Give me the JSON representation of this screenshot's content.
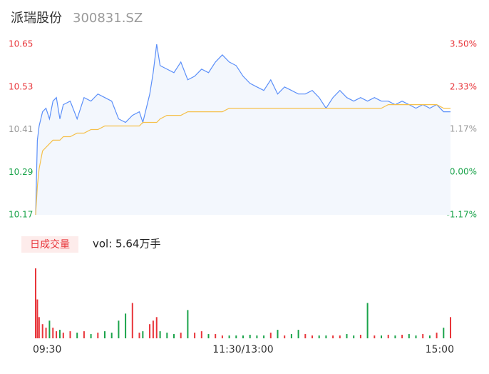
{
  "header": {
    "name": "派瑞股份",
    "code": "300831.SZ"
  },
  "chart_data": {
    "type": "line",
    "x": [
      0,
      1,
      2,
      4,
      6,
      8,
      10,
      12,
      14,
      16,
      20,
      24,
      28,
      32,
      36,
      40,
      44,
      48,
      52,
      56,
      60,
      62,
      66,
      68,
      70,
      72,
      76,
      80,
      84,
      88,
      92,
      96,
      100,
      104,
      108,
      112,
      116,
      120,
      124,
      128,
      132,
      136,
      140,
      144,
      148,
      152,
      156,
      160,
      164,
      168,
      172,
      176,
      180,
      184,
      188,
      192,
      196,
      200,
      204,
      208,
      212,
      216,
      220,
      224,
      228,
      232,
      236,
      240
    ],
    "xlim": [
      0,
      240
    ],
    "xticks": [
      {
        "value": 0,
        "label": "09:30"
      },
      {
        "value": 120,
        "label": "11:30/13:00"
      },
      {
        "value": 240,
        "label": "15:00"
      }
    ],
    "series": [
      {
        "color": "#5b8ff9",
        "fill": "#f3f7fd",
        "values": [
          10.17,
          10.38,
          10.42,
          10.46,
          10.47,
          10.44,
          10.49,
          10.5,
          10.44,
          10.48,
          10.49,
          10.44,
          10.5,
          10.49,
          10.51,
          10.5,
          10.49,
          10.44,
          10.43,
          10.45,
          10.46,
          10.43,
          10.51,
          10.57,
          10.65,
          10.59,
          10.58,
          10.57,
          10.6,
          10.55,
          10.56,
          10.58,
          10.57,
          10.6,
          10.62,
          10.6,
          10.59,
          10.56,
          10.54,
          10.53,
          10.52,
          10.55,
          10.51,
          10.53,
          10.52,
          10.51,
          10.51,
          10.52,
          10.5,
          10.47,
          10.5,
          10.52,
          10.5,
          10.49,
          10.5,
          10.49,
          10.5,
          10.49,
          10.49,
          10.48,
          10.49,
          10.48,
          10.47,
          10.48,
          10.47,
          10.48,
          10.46,
          10.46
        ]
      },
      {
        "color": "#f5c04a",
        "values": [
          10.17,
          10.25,
          10.3,
          10.35,
          10.36,
          10.37,
          10.38,
          10.38,
          10.38,
          10.39,
          10.39,
          10.4,
          10.4,
          10.41,
          10.41,
          10.42,
          10.42,
          10.42,
          10.42,
          10.42,
          10.42,
          10.43,
          10.43,
          10.43,
          10.43,
          10.44,
          10.45,
          10.45,
          10.45,
          10.46,
          10.46,
          10.46,
          10.46,
          10.46,
          10.46,
          10.47,
          10.47,
          10.47,
          10.47,
          10.47,
          10.47,
          10.47,
          10.47,
          10.47,
          10.47,
          10.47,
          10.47,
          10.47,
          10.47,
          10.47,
          10.47,
          10.47,
          10.47,
          10.47,
          10.47,
          10.47,
          10.47,
          10.47,
          10.48,
          10.48,
          10.48,
          10.48,
          10.48,
          10.48,
          10.48,
          10.48,
          10.47,
          10.47
        ]
      }
    ],
    "ylim": [
      10.17,
      10.65
    ],
    "yticks": [
      10.65,
      10.53,
      10.41,
      10.29,
      10.17
    ],
    "ytick_colors": [
      "#e8353a",
      "#e8353a",
      "#999999",
      "#1aa34a",
      "#1aa34a"
    ],
    "y2lim": [
      -1.17,
      3.5
    ],
    "y2ticks": [
      {
        "value": 3.5,
        "label": "3.50%"
      },
      {
        "value": 2.33,
        "label": "2.33%"
      },
      {
        "value": 1.17,
        "label": "1.17%"
      },
      {
        "value": 0,
        "label": "0.00%"
      },
      {
        "value": -1.17,
        "label": "-1.17%"
      }
    ],
    "volume": {
      "type": "bar",
      "title": "日成交量",
      "label": "vol: 5.64万手",
      "up_color": "#e8353a",
      "down_color": "#1aa34a",
      "ylim": [
        0,
        2000
      ],
      "values": [
        1980,
        1100,
        600,
        400,
        300,
        500,
        300,
        200,
        240,
        160,
        200,
        160,
        200,
        120,
        160,
        200,
        160,
        500,
        700,
        1000,
        160,
        200,
        400,
        500,
        600,
        200,
        160,
        120,
        160,
        800,
        160,
        200,
        120,
        120,
        80,
        80,
        80,
        80,
        100,
        80,
        80,
        160,
        240,
        80,
        120,
        240,
        120,
        80,
        80,
        80,
        80,
        80,
        120,
        80,
        100,
        1000,
        80,
        80,
        100,
        80,
        100,
        120,
        80,
        120,
        80,
        160,
        300,
        600
      ]
    }
  }
}
